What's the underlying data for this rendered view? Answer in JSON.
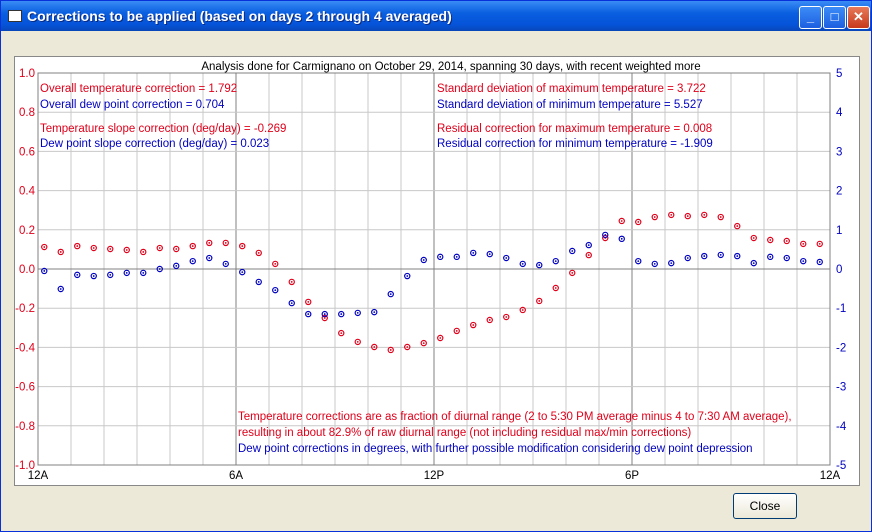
{
  "window": {
    "title": "Corrections to be applied (based on days 2 through 4 averaged)",
    "minimize_icon": "minimize-icon",
    "maximize_icon": "maximize-icon",
    "close_icon": "close-icon"
  },
  "analysis_title": "Analysis done for Carmignano on October 29, 2014, spanning 30 days, with recent weighted more",
  "stats": {
    "overall_temp": "Overall temperature correction =  1.792",
    "overall_dew": "Overall dew point correction =  0.704",
    "temp_slope": "Temperature slope correction (deg/day) = -0.269",
    "dew_slope": "Dew point slope correction (deg/day) =  0.023",
    "sd_max": "Standard deviation of maximum temperature =  3.722",
    "sd_min": "Standard deviation of minimum temperature =  5.527",
    "res_max": "Residual correction for maximum temperature =  0.008",
    "res_min": "Residual correction for minimum temperature = -1.909"
  },
  "notes": {
    "line1": "Temperature corrections are as fraction of diurnal range (2 to 5:30 PM average minus 4 to 7:30 AM average),",
    "line2": "resulting in about  82.9% of raw diurnal range (not including residual max/min corrections)",
    "line3": "Dew point corrections in degrees, with further possible modification considering dew point depression"
  },
  "colors": {
    "temp": "#e0001a",
    "dew": "#0000c0"
  },
  "chart_data": {
    "type": "scatter",
    "x_ticks": [
      "12A",
      "6A",
      "12P",
      "6P",
      "12A"
    ],
    "x_unit": "hour",
    "xlim": [
      0,
      24
    ],
    "left_ylim": [
      -1,
      1
    ],
    "left_ticks": [
      "1.0",
      "0.8",
      "0.6",
      "0.4",
      "0.2",
      "0.0",
      "-0.2",
      "-0.4",
      "-0.6",
      "-0.8",
      "-1.0"
    ],
    "right_ylim": [
      -5,
      5
    ],
    "right_ticks": [
      "5",
      "4",
      "3",
      "2",
      "1",
      "0",
      "-1",
      "-2",
      "-3",
      "-4",
      "-5"
    ],
    "grid": true,
    "series": [
      {
        "name": "Temperature correction",
        "axis": "left",
        "color": "#e0001a",
        "values": [
          0.112,
          0.087,
          0.117,
          0.107,
          0.102,
          0.097,
          0.087,
          0.107,
          0.102,
          0.117,
          0.133,
          0.133,
          0.117,
          0.082,
          0.026,
          -0.066,
          -0.168,
          -0.25,
          -0.327,
          -0.372,
          -0.398,
          -0.413,
          -0.398,
          -0.378,
          -0.352,
          -0.316,
          -0.286,
          -0.26,
          -0.245,
          -0.209,
          -0.163,
          -0.097,
          -0.02,
          0.071,
          0.158,
          0.245,
          0.24,
          0.265,
          0.276,
          0.27,
          0.276,
          0.265,
          0.219,
          0.158,
          0.148,
          0.143,
          0.128,
          0.128
        ]
      },
      {
        "name": "Dew point correction",
        "axis": "right",
        "color": "#0000c0",
        "values": [
          -0.05,
          -0.51,
          -0.15,
          -0.18,
          -0.15,
          -0.1,
          -0.1,
          0,
          0.08,
          0.2,
          0.28,
          0.13,
          -0.08,
          -0.33,
          -0.54,
          -0.87,
          -1.15,
          -1.15,
          -1.15,
          -1.12,
          -1.1,
          -0.64,
          -0.18,
          0.23,
          0.31,
          0.31,
          0.41,
          0.38,
          0.28,
          0.13,
          0.1,
          0.2,
          0.46,
          0.61,
          0.87,
          0.77,
          0.2,
          0.13,
          0.15,
          0.28,
          0.33,
          0.36,
          0.33,
          0.15,
          0.31,
          0.28,
          0.2,
          0.18
        ]
      }
    ]
  },
  "buttons": {
    "close": "Close"
  }
}
